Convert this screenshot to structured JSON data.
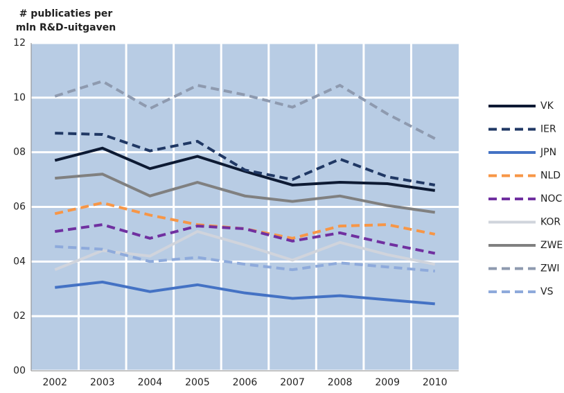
{
  "chart_data": {
    "type": "line",
    "axis_title_lines": [
      "# publicaties per",
      "mln R&D-uitgaven"
    ],
    "categories": [
      "2002",
      "2003",
      "2004",
      "2005",
      "2006",
      "2007",
      "2008",
      "2009",
      "2010"
    ],
    "ylim": [
      0,
      12
    ],
    "yticks": [
      {
        "value": 0,
        "label": "00"
      },
      {
        "value": 2,
        "label": "02"
      },
      {
        "value": 4,
        "label": "04"
      },
      {
        "value": 6,
        "label": "06"
      },
      {
        "value": 8,
        "label": "08"
      },
      10,
      12
    ],
    "grid": true,
    "legend": "right",
    "series": [
      {
        "name": "VK",
        "color": "#0d1a33",
        "dashed": false,
        "values": [
          7.7,
          8.15,
          7.4,
          7.85,
          7.3,
          6.8,
          6.9,
          6.85,
          6.6
        ]
      },
      {
        "name": "IER",
        "color": "#203864",
        "dashed": true,
        "values": [
          8.7,
          8.65,
          8.05,
          8.4,
          7.35,
          7.0,
          7.75,
          7.1,
          6.8
        ]
      },
      {
        "name": "JPN",
        "color": "#4472c4",
        "dashed": false,
        "values": [
          3.05,
          3.25,
          2.9,
          3.15,
          2.85,
          2.65,
          2.75,
          2.6,
          2.45
        ]
      },
      {
        "name": "NLD",
        "color": "#f79646",
        "dashed": true,
        "values": [
          5.75,
          6.15,
          5.7,
          5.35,
          5.2,
          4.85,
          5.3,
          5.35,
          5.0
        ]
      },
      {
        "name": "NOC",
        "color": "#7030a0",
        "dashed": true,
        "values": [
          5.1,
          5.35,
          4.85,
          5.3,
          5.2,
          4.75,
          5.05,
          4.65,
          4.3
        ]
      },
      {
        "name": "KOR",
        "color": "#d0d4dc",
        "dashed": false,
        "values": [
          3.7,
          4.4,
          4.2,
          5.1,
          4.6,
          4.05,
          4.7,
          4.25,
          3.9
        ]
      },
      {
        "name": "ZWE",
        "color": "#808080",
        "dashed": false,
        "values": [
          7.05,
          7.2,
          6.4,
          6.9,
          6.4,
          6.2,
          6.4,
          6.05,
          5.8
        ]
      },
      {
        "name": "ZWI",
        "color": "#8e9aaf",
        "dashed": true,
        "values": [
          10.05,
          10.6,
          9.6,
          10.45,
          10.1,
          9.65,
          10.45,
          9.4,
          8.5
        ]
      },
      {
        "name": "VS",
        "color": "#8eaadb",
        "dashed": true,
        "values": [
          4.55,
          4.45,
          4.0,
          4.15,
          3.9,
          3.7,
          3.95,
          3.8,
          3.65
        ]
      }
    ]
  }
}
